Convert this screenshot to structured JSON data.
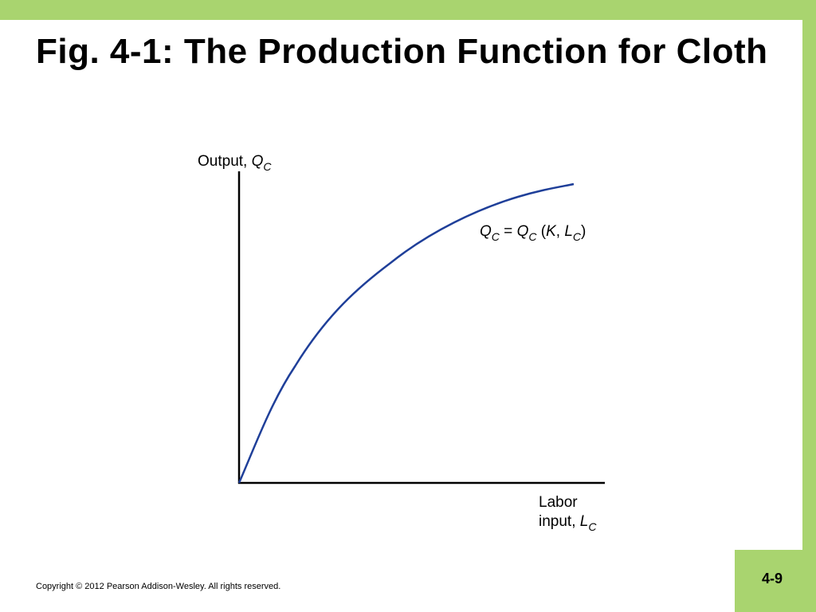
{
  "title": "Fig. 4-1: The Production Function for Cloth",
  "y_axis_label": [
    "Output, ",
    "Q",
    "C"
  ],
  "x_axis_label": [
    "Labor",
    "input, ",
    "L",
    "C"
  ],
  "curve_label": [
    "Q",
    "C",
    " = ",
    "Q",
    "C",
    " (",
    "K",
    ", ",
    "L",
    "C",
    ")"
  ],
  "footer": {
    "copyright": "Copyright © 2012 Pearson Addison-Wesley. All rights reserved.",
    "page": "4-9"
  }
}
